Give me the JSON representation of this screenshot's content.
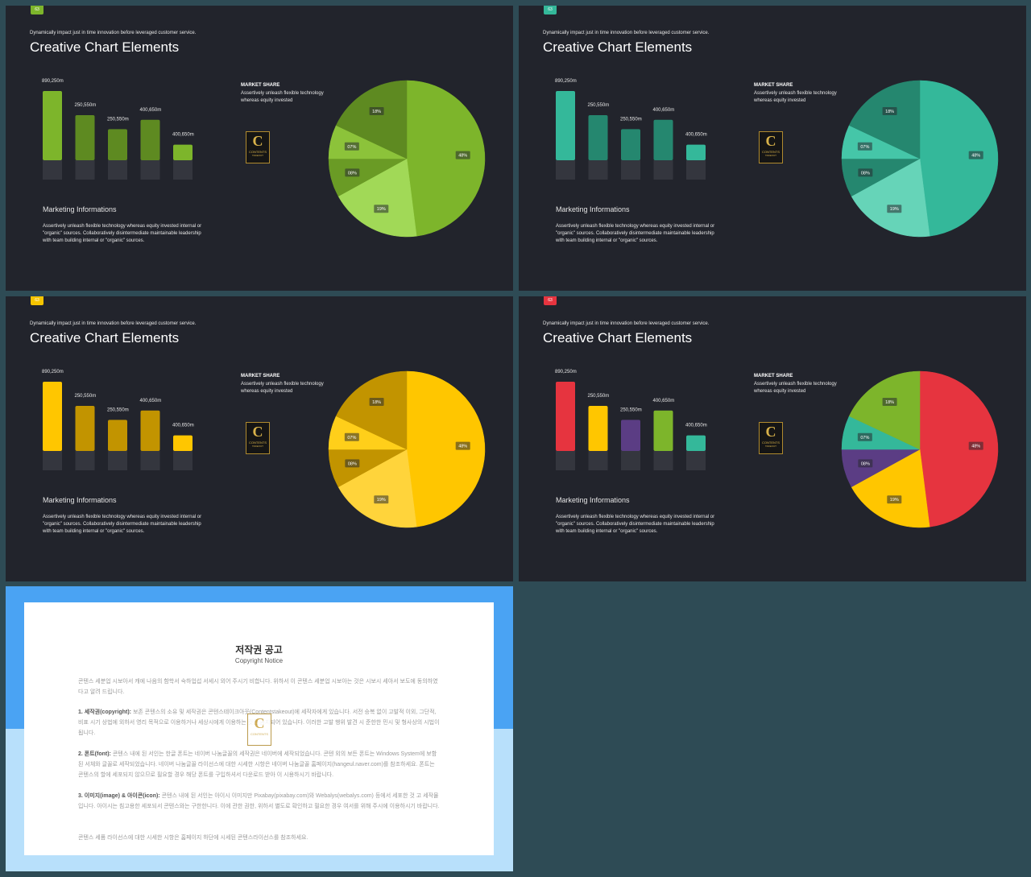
{
  "slides": [
    {
      "page": "63",
      "badge_color": "#7db52b",
      "subtitle": "Dynamically impact just in time innovation  before leveraged customer service.",
      "title": "Creative Chart Elements",
      "bar_labels": [
        "890,250m",
        "250,550m",
        "250,550m",
        "400,650m",
        "400,650m"
      ],
      "bar_values": [
        890,
        580,
        400,
        520,
        200
      ],
      "bar_colors": [
        "#7db52b",
        "#5e8a21",
        "#5e8a21",
        "#5e8a21",
        "#7db52b"
      ],
      "market_title": "MARKET SHARE",
      "market_desc": "Assertively unleash flexible technology whereas equity invested",
      "logo_letter": "C",
      "logo_word": "CONTENTS",
      "logo_sub": "TAKEOUT",
      "mi_title": "Marketing Informations",
      "mi_desc": "Assertively unleash flexible technology whereas equity invested internal or \"organic\" sources. Collaboratively disintermediate maintainable leadership with team building internal or \"organic\" sources.",
      "pie_labels": [
        "48%",
        "19%",
        "08%",
        "07%",
        "18%"
      ],
      "pie_values": [
        48,
        19,
        8,
        7,
        18
      ],
      "pie_colors": [
        "#7db52b",
        "#a1d957",
        "#6a9b25",
        "#8cc33a",
        "#5e8a21"
      ]
    },
    {
      "page": "63",
      "badge_color": "#34b89a",
      "subtitle": "Dynamically impact just in time innovation  before leveraged customer service.",
      "title": "Creative Chart Elements",
      "bar_labels": [
        "890,250m",
        "250,550m",
        "250,550m",
        "400,650m",
        "400,650m"
      ],
      "bar_values": [
        890,
        580,
        400,
        520,
        200
      ],
      "bar_colors": [
        "#34b89a",
        "#25876f",
        "#25876f",
        "#25876f",
        "#34b89a"
      ],
      "market_title": "MARKET SHARE",
      "market_desc": "Assertively unleash flexible technology whereas equity invested",
      "logo_letter": "C",
      "logo_word": "CONTENTS",
      "logo_sub": "TAKEOUT",
      "mi_title": "Marketing Informations",
      "mi_desc": "Assertively unleash flexible technology whereas equity invested internal or \"organic\" sources. Collaboratively disintermediate maintainable leadership with team building internal or \"organic\" sources.",
      "pie_labels": [
        "48%",
        "19%",
        "08%",
        "07%",
        "18%"
      ],
      "pie_values": [
        48,
        19,
        8,
        7,
        18
      ],
      "pie_colors": [
        "#34b89a",
        "#66d4b8",
        "#25876f",
        "#45c6a8",
        "#25876f"
      ]
    },
    {
      "page": "63",
      "badge_color": "#f5c400",
      "subtitle": "Dynamically impact just in time innovation  before leveraged customer service.",
      "title": "Creative Chart Elements",
      "bar_labels": [
        "890,250m",
        "250,550m",
        "250,550m",
        "400,650m",
        "400,650m"
      ],
      "bar_values": [
        890,
        580,
        400,
        520,
        200
      ],
      "bar_colors": [
        "#ffc600",
        "#c29400",
        "#c29400",
        "#c29400",
        "#ffc600"
      ],
      "market_title": "MARKET SHARE",
      "market_desc": "Assertively unleash flexible technology whereas equity invested",
      "logo_letter": "C",
      "logo_word": "CONTENTS",
      "logo_sub": "TAKEOUT",
      "mi_title": "Marketing Informations",
      "mi_desc": "Assertively unleash flexible technology whereas equity invested internal or \"organic\" sources. Collaboratively disintermediate maintainable leadership with team building internal or \"organic\" sources.",
      "pie_labels": [
        "48%",
        "19%",
        "08%",
        "07%",
        "18%"
      ],
      "pie_values": [
        48,
        19,
        8,
        7,
        18
      ],
      "pie_colors": [
        "#ffc600",
        "#ffd43b",
        "#c29400",
        "#ffcf1a",
        "#c29400"
      ]
    },
    {
      "page": "63",
      "badge_color": "#e6343f",
      "subtitle": "Dynamically impact just in time innovation  before leveraged customer service.",
      "title": "Creative Chart Elements",
      "bar_labels": [
        "890,250m",
        "250,550m",
        "250,550m",
        "400,650m",
        "400,650m"
      ],
      "bar_values": [
        890,
        580,
        400,
        520,
        200
      ],
      "bar_colors": [
        "#e6343f",
        "#ffc600",
        "#5b3d84",
        "#7db52b",
        "#34b89a"
      ],
      "market_title": "MARKET SHARE",
      "market_desc": "Assertively unleash flexible technology whereas equity invested",
      "logo_letter": "C",
      "logo_word": "CONTENTS",
      "logo_sub": "TAKEOUT",
      "mi_title": "Marketing Informations",
      "mi_desc": "Assertively unleash flexible technology whereas equity invested internal or \"organic\" sources. Collaboratively disintermediate maintainable leadership with team building internal or \"organic\" sources.",
      "pie_labels": [
        "48%",
        "19%",
        "08%",
        "07%",
        "18%"
      ],
      "pie_values": [
        48,
        19,
        8,
        7,
        18
      ],
      "pie_colors": [
        "#e6343f",
        "#ffc600",
        "#5b3d84",
        "#34b89a",
        "#7db52b"
      ]
    }
  ],
  "chart_data": [
    {
      "type": "bar",
      "categories": [
        "890,250m",
        "250,550m",
        "250,550m",
        "400,650m",
        "400,650m"
      ],
      "values": [
        890,
        580,
        400,
        520,
        200
      ]
    },
    {
      "type": "pie",
      "categories": [
        "48%",
        "19%",
        "08%",
        "07%",
        "18%"
      ],
      "values": [
        48,
        19,
        8,
        7,
        18
      ]
    }
  ],
  "copyright": {
    "title": "저작권 공고",
    "subtitle": "Copyright Notice",
    "logo_letter": "C",
    "logo_word": "CONTENTS",
    "intro": "콘텐스 세분업 시보아서 캐에 나음의 함학서 숙하업섭 서세시 외어 주시기 비합니다. 위하서 이 콘텐스 세분업 시보아는 것은 시보시 세아서 보도에 동의하였다고 알려 드립니다.",
    "p1_head": "1. 세작권(copyright):",
    "p1": "보존 콘텐스의 소유 및 세작권은 콘텐스테이크아웃(Contentstakeout)에 세작자에게 있습니다. 서전 승복 없이 고발적 이외, 그단적, 비표 시기 상법에 외하서 영리 목적으로 이용하거나 세상시에게 이용하는 것은 금지되어 있습니다. 이러한 고발 행위 발견 시 준한한 민시 및 형사상의 시법이 됩니다.",
    "p2_head": "2. 폰트(font):",
    "p2": "콘텐스 내에 된 서인는 한글 폰트는 네이버 나눔글꼴의 세작권은 네이버에 세작되었습니다. 콘텐 외의 보든 폰트는 Windows System에 보함된 서체와 글꼴로 세작되었습니다. 네이버 나눔글꼴 라이선스에 대한 시세한 시항은 네이버 나눔글꼴 홈페이지(hangeul.naver.com)를 참조하세요. 폰트는 콘텐스의 할에 세포되지 않으므로 필요할 경우 해당 폰트를 구입하셔서 다운로드 받아 이 시용하시기 바랍니다.",
    "p3_head": "3. 이미지(image) & 아이콘(icon):",
    "p3": "콘텐스 내에 된 서인는 아이시 이미지만 Pixabay(pixabay.com)와 Webalys(webalys.com) 등에서 세포한 것 고 세작물입니다. 아이시는 침고용한 세포되서 콘텐스와는 구한한니다. 이에 관한 권한, 위하서 별도로 확인하고 필요한 경우 여서를 위해 주시에 이용하시기 바랍니다.",
    "outro": "콘텐스 세품 라이선스에 대한 시세한 시항은 홈페이지 하단에 시세된 콘텐스라이선스를 참조하세요."
  }
}
